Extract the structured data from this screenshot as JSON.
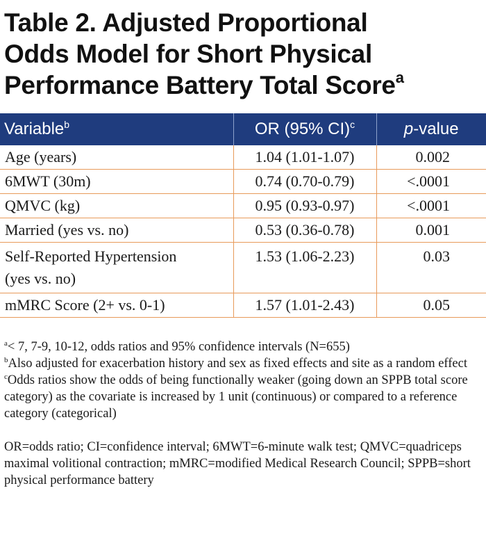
{
  "title": {
    "line1": "Table 2. Adjusted Proportional",
    "line2": "Odds Model for Short Physical",
    "line3": "Performance Battery Total Score",
    "sup": "a"
  },
  "table": {
    "headers": {
      "variable": "Variable",
      "variable_sup": "b",
      "or": "OR (95% CI)",
      "or_sup": "c",
      "p_italic": "p",
      "p_rest": "-value"
    },
    "rows": [
      {
        "variable": "Age (years)",
        "or": "1.04 (1.01-1.07)",
        "p": "0.002"
      },
      {
        "variable": "6MWT (30m)",
        "or": "0.74 (0.70-0.79)",
        "p": "<.0001"
      },
      {
        "variable": "QMVC (kg)",
        "or": "0.95 (0.93-0.97)",
        "p": "<.0001"
      },
      {
        "variable": "Married (yes vs. no)",
        "or": "0.53 (0.36-0.78)",
        "p": "0.001"
      },
      {
        "variable_line1": "Self-Reported Hypertension",
        "variable_line2": "(yes vs. no)",
        "or": "1.53 (1.06-2.23)",
        "p": "0.03"
      },
      {
        "variable": "mMRC Score (2+ vs. 0-1)",
        "or": "1.57 (1.01-2.43)",
        "p": "0.05"
      }
    ]
  },
  "footnotes": {
    "a_sup": "a",
    "a_text": "< 7, 7-9, 10-12, odds ratios and 95% confidence intervals (N=655)",
    "b_sup": "b",
    "b_text": "Also adjusted for exacerbation history and sex as fixed effects and site as a random effect",
    "c_sup": "c",
    "c_text": "Odds ratios show the odds of being functionally weaker (going down an SPPB total score category) as the covariate is increased by 1 unit (continuous) or compared to a reference category (categorical)",
    "abbreviations": "OR=odds ratio; CI=confidence interval; 6MWT=6-minute walk test; QMVC=quadriceps maximal volitional contraction; mMRC=modified Medical Research Council; SPPB=short physical performance battery"
  }
}
